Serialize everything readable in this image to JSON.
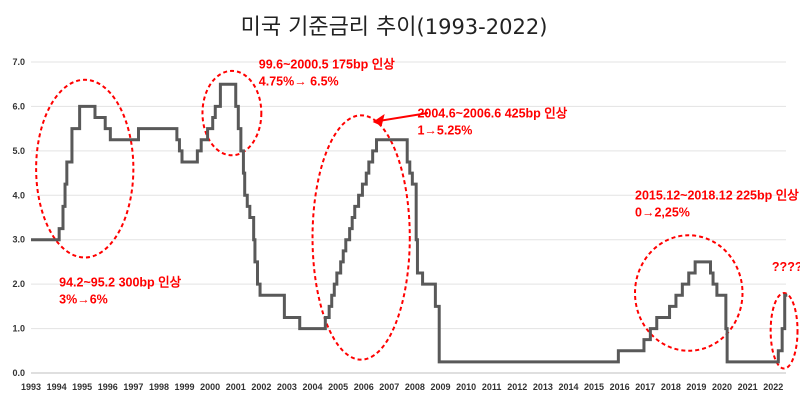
{
  "chart_data": {
    "type": "line",
    "title": "미국 기준금리 추이",
    "subtitle": "(1993-2022)",
    "xlabel": "",
    "ylabel": "",
    "xlim": [
      1993,
      2022.5
    ],
    "ylim": [
      0,
      7
    ],
    "y_ticks": [
      "0.0",
      "1.0",
      "2.0",
      "3.0",
      "4.0",
      "5.0",
      "6.0",
      "7.0"
    ],
    "x_ticks": [
      "1993",
      "1994",
      "1995",
      "1996",
      "1997",
      "1998",
      "1999",
      "2000",
      "2001",
      "2002",
      "2003",
      "2004",
      "2005",
      "2006",
      "2007",
      "2008",
      "2009",
      "2010",
      "2011",
      "2012",
      "2013",
      "2014",
      "2015",
      "2016",
      "2017",
      "2018",
      "2019",
      "2020",
      "2021",
      "2022"
    ],
    "grid": "horizontal",
    "series": [
      {
        "color": "#595959",
        "x": [
          1993.0,
          1994.1,
          1994.25,
          1994.33,
          1994.4,
          1994.6,
          1994.9,
          1995.1,
          1995.5,
          1995.9,
          1996.1,
          1997.2,
          1998.7,
          1998.8,
          1998.9,
          1999.5,
          1999.65,
          1999.9,
          2000.1,
          2000.2,
          2000.4,
          2001.0,
          2001.1,
          2001.2,
          2001.3,
          2001.35,
          2001.45,
          2001.55,
          2001.7,
          2001.75,
          2001.85,
          2001.95,
          2002.9,
          2003.5,
          2004.5,
          2004.65,
          2004.75,
          2004.85,
          2004.95,
          2005.1,
          2005.2,
          2005.3,
          2005.45,
          2005.55,
          2005.65,
          2005.8,
          2005.95,
          2006.1,
          2006.2,
          2006.35,
          2006.5,
          2007.7,
          2007.8,
          2007.9,
          2008.05,
          2008.1,
          2008.3,
          2008.8,
          2008.95,
          2015.95,
          2016.95,
          2017.2,
          2017.45,
          2017.95,
          2018.2,
          2018.45,
          2018.7,
          2018.95,
          2019.55,
          2019.65,
          2019.8,
          2020.15,
          2020.2,
          2022.2,
          2022.35,
          2022.45,
          2022.55
        ],
        "y": [
          3.0,
          3.25,
          3.75,
          4.25,
          4.75,
          5.5,
          6.0,
          6.0,
          5.75,
          5.5,
          5.25,
          5.5,
          5.25,
          5.0,
          4.75,
          5.0,
          5.25,
          5.5,
          5.75,
          6.0,
          6.5,
          6.0,
          5.5,
          5.0,
          4.5,
          4.0,
          3.75,
          3.5,
          3.0,
          2.5,
          2.0,
          1.75,
          1.25,
          1.0,
          1.25,
          1.5,
          1.75,
          2.0,
          2.25,
          2.5,
          2.75,
          3.0,
          3.25,
          3.5,
          3.75,
          4.0,
          4.25,
          4.5,
          4.75,
          5.0,
          5.25,
          4.75,
          4.5,
          4.25,
          3.0,
          2.25,
          2.0,
          1.5,
          0.25,
          0.5,
          0.75,
          1.0,
          1.25,
          1.5,
          1.75,
          2.0,
          2.25,
          2.5,
          2.25,
          2.0,
          1.75,
          1.0,
          0.25,
          0.5,
          1.0,
          1.75,
          1.75
        ]
      }
    ],
    "annotations": [
      {
        "lines": [
          "94.2~95.2 300bp 인상",
          "3%→6%"
        ],
        "color": "#ff0000"
      },
      {
        "lines": [
          "99.6~2000.5 175bp 인상",
          "4.75%→ 6.5%"
        ],
        "color": "#ff0000"
      },
      {
        "lines": [
          "2004.6~2006.6 425bp 인상",
          "1→5.25%"
        ],
        "color": "#ff0000"
      },
      {
        "lines": [
          "2015.12~2018.12 225bp 인상",
          "0→2,25%"
        ],
        "color": "#ff0000"
      },
      {
        "lines": [
          "??????"
        ],
        "color": "#ff0000"
      }
    ],
    "line_color": "#595959",
    "highlight_color": "#ff0000"
  }
}
